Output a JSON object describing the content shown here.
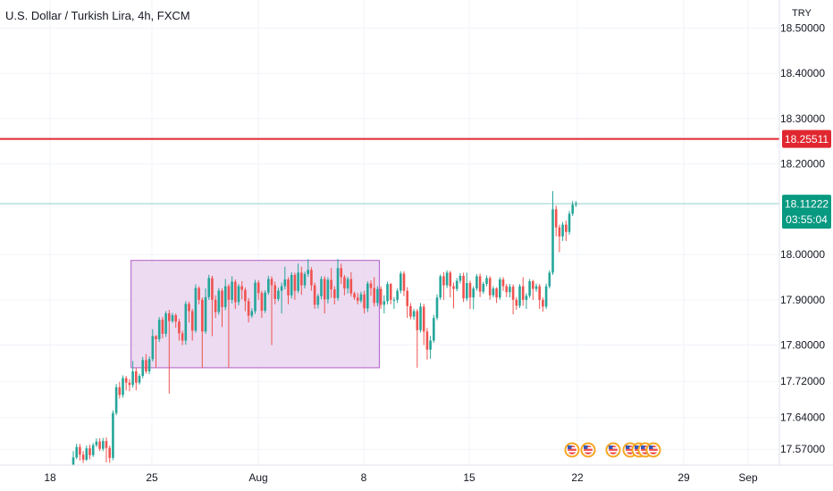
{
  "header": {
    "title": "U.S. Dollar / Turkish Lira, 4h, FXCM",
    "currency": "TRY"
  },
  "chart_data": {
    "type": "candlestick",
    "symbol": "USDTRY",
    "interval": "4h",
    "y_range": [
      17.535,
      18.562
    ],
    "y_ticks": [
      "17.57000",
      "17.64000",
      "17.72000",
      "17.80000",
      "17.90000",
      "18.00000",
      "18.20000",
      "18.30000",
      "18.40000",
      "18.50000"
    ],
    "x_ticks": [
      "18",
      "25",
      "Aug",
      "8",
      "15",
      "22",
      "29",
      "Sep"
    ],
    "resistance_line": {
      "value": 18.25511,
      "label": "18.25511",
      "color": "#e0272f"
    },
    "last_price": {
      "value": 18.11222,
      "label": "18.11222",
      "countdown": "03:55:04",
      "color": "#089981"
    },
    "range_box": {
      "from_index": 18,
      "to_index": 92,
      "high": 17.987,
      "low": 17.75,
      "fill": "#e9d5ee",
      "stroke": "#b05cc8"
    },
    "candle_colors": {
      "up": "#26a69a",
      "down": "#ef5350"
    },
    "event_markers_count": 7,
    "candles": [
      [
        17.536,
        17.552,
        17.536,
        17.566
      ],
      [
        17.552,
        17.575,
        17.548,
        17.582
      ],
      [
        17.575,
        17.558,
        17.545,
        17.582
      ],
      [
        17.558,
        17.547,
        17.54,
        17.566
      ],
      [
        17.547,
        17.572,
        17.544,
        17.578
      ],
      [
        17.572,
        17.557,
        17.548,
        17.58
      ],
      [
        17.557,
        17.579,
        17.553,
        17.584
      ],
      [
        17.579,
        17.587,
        17.575,
        17.594
      ],
      [
        17.587,
        17.571,
        17.566,
        17.594
      ],
      [
        17.571,
        17.588,
        17.566,
        17.595
      ],
      [
        17.588,
        17.573,
        17.541,
        17.596
      ],
      [
        17.573,
        17.551,
        17.54,
        17.578
      ],
      [
        17.551,
        17.65,
        17.546,
        17.656
      ],
      [
        17.65,
        17.707,
        17.645,
        17.714
      ],
      [
        17.707,
        17.69,
        17.682,
        17.719
      ],
      [
        17.69,
        17.727,
        17.684,
        17.733
      ],
      [
        17.727,
        17.717,
        17.7,
        17.732
      ],
      [
        17.717,
        17.712,
        17.698,
        17.725
      ],
      [
        17.712,
        17.742,
        17.706,
        17.765
      ],
      [
        17.742,
        17.717,
        17.7,
        17.75
      ],
      [
        17.717,
        17.732,
        17.713,
        17.737
      ],
      [
        17.732,
        17.767,
        17.727,
        17.774
      ],
      [
        17.767,
        17.742,
        17.737,
        17.78
      ],
      [
        17.742,
        17.769,
        17.736,
        17.775
      ],
      [
        17.769,
        17.82,
        17.764,
        17.835
      ],
      [
        17.82,
        17.813,
        17.75,
        17.822
      ],
      [
        17.813,
        17.856,
        17.807,
        17.862
      ],
      [
        17.856,
        17.825,
        17.815,
        17.862
      ],
      [
        17.825,
        17.87,
        17.818,
        17.875
      ],
      [
        17.87,
        17.853,
        17.693,
        17.878
      ],
      [
        17.853,
        17.866,
        17.849,
        17.871
      ],
      [
        17.866,
        17.852,
        17.838,
        17.87
      ],
      [
        17.852,
        17.826,
        17.81,
        17.858
      ],
      [
        17.826,
        17.81,
        17.8,
        17.832
      ],
      [
        17.81,
        17.891,
        17.801,
        17.897
      ],
      [
        17.891,
        17.875,
        17.85,
        17.896
      ],
      [
        17.875,
        17.832,
        17.81,
        17.88
      ],
      [
        17.832,
        17.926,
        17.827,
        17.934
      ],
      [
        17.926,
        17.9,
        17.89,
        17.93
      ],
      [
        17.9,
        17.83,
        17.75,
        17.905
      ],
      [
        17.83,
        17.906,
        17.825,
        17.925
      ],
      [
        17.906,
        17.948,
        17.9,
        17.955
      ],
      [
        17.948,
        17.9,
        17.82,
        17.953
      ],
      [
        17.9,
        17.873,
        17.86,
        17.91
      ],
      [
        17.873,
        17.92,
        17.867,
        17.926
      ],
      [
        17.92,
        17.884,
        17.84,
        17.925
      ],
      [
        17.884,
        17.93,
        17.877,
        17.946
      ],
      [
        17.93,
        17.9,
        17.75,
        17.935
      ],
      [
        17.9,
        17.94,
        17.892,
        17.952
      ],
      [
        17.94,
        17.895,
        17.88,
        17.945
      ],
      [
        17.895,
        17.93,
        17.888,
        17.935
      ],
      [
        17.93,
        17.922,
        17.901,
        17.941
      ],
      [
        17.922,
        17.897,
        17.875,
        17.927
      ],
      [
        17.897,
        17.865,
        17.85,
        17.904
      ],
      [
        17.865,
        17.875,
        17.86,
        17.881
      ],
      [
        17.875,
        17.938,
        17.869,
        17.944
      ],
      [
        17.938,
        17.915,
        17.9,
        17.943
      ],
      [
        17.915,
        17.876,
        17.86,
        17.92
      ],
      [
        17.876,
        17.916,
        17.871,
        17.921
      ],
      [
        17.916,
        17.946,
        17.911,
        17.953
      ],
      [
        17.946,
        17.932,
        17.8,
        17.952
      ],
      [
        17.932,
        17.902,
        17.89,
        17.94
      ],
      [
        17.902,
        17.92,
        17.897,
        17.927
      ],
      [
        17.92,
        17.93,
        17.87,
        17.938
      ],
      [
        17.93,
        17.945,
        17.923,
        17.973
      ],
      [
        17.945,
        17.91,
        17.89,
        17.95
      ],
      [
        17.91,
        17.955,
        17.903,
        17.961
      ],
      [
        17.955,
        17.92,
        17.9,
        17.96
      ],
      [
        17.92,
        17.96,
        17.915,
        17.98
      ],
      [
        17.96,
        17.932,
        17.911,
        17.973
      ],
      [
        17.932,
        17.957,
        17.925,
        17.962
      ],
      [
        17.957,
        17.966,
        17.951,
        17.99
      ],
      [
        17.966,
        17.932,
        17.92,
        17.972
      ],
      [
        17.932,
        17.889,
        17.88,
        17.938
      ],
      [
        17.889,
        17.908,
        17.881,
        17.913
      ],
      [
        17.908,
        17.946,
        17.901,
        17.952
      ],
      [
        17.946,
        17.901,
        17.87,
        17.952
      ],
      [
        17.901,
        17.944,
        17.892,
        17.95
      ],
      [
        17.944,
        17.923,
        17.904,
        17.97
      ],
      [
        17.923,
        17.904,
        17.89,
        17.93
      ],
      [
        17.904,
        17.97,
        17.898,
        17.99
      ],
      [
        17.97,
        17.95,
        17.935,
        17.98
      ],
      [
        17.95,
        17.925,
        17.91,
        17.955
      ],
      [
        17.925,
        17.946,
        17.914,
        17.951
      ],
      [
        17.946,
        17.914,
        17.907,
        17.961
      ],
      [
        17.914,
        17.905,
        17.9,
        17.918
      ],
      [
        17.905,
        17.898,
        17.89,
        17.915
      ],
      [
        17.898,
        17.912,
        17.893,
        17.918
      ],
      [
        17.912,
        17.881,
        17.87,
        17.92
      ],
      [
        17.881,
        17.936,
        17.873,
        17.941
      ],
      [
        17.936,
        17.926,
        17.909,
        17.943
      ],
      [
        17.926,
        17.893,
        17.885,
        17.95
      ],
      [
        17.893,
        17.924,
        17.886,
        17.93
      ],
      [
        17.924,
        17.889,
        17.88,
        17.93
      ],
      [
        17.889,
        17.897,
        17.87,
        17.91
      ],
      [
        17.897,
        17.935,
        17.89,
        17.94
      ],
      [
        17.935,
        17.9,
        17.89,
        17.937
      ],
      [
        17.9,
        17.9,
        17.88,
        17.906
      ],
      [
        17.9,
        17.92,
        17.893,
        17.925
      ],
      [
        17.92,
        17.958,
        17.914,
        17.963
      ],
      [
        17.958,
        17.92,
        17.908,
        17.963
      ],
      [
        17.92,
        17.886,
        17.86,
        17.928
      ],
      [
        17.886,
        17.863,
        17.857,
        17.893
      ],
      [
        17.863,
        17.875,
        17.856,
        17.88
      ],
      [
        17.875,
        17.833,
        17.75,
        17.88
      ],
      [
        17.833,
        17.885,
        17.828,
        17.893
      ],
      [
        17.885,
        17.83,
        17.8,
        17.891
      ],
      [
        17.83,
        17.79,
        17.768,
        17.838
      ],
      [
        17.79,
        17.81,
        17.77,
        17.82
      ],
      [
        17.81,
        17.86,
        17.805,
        17.867
      ],
      [
        17.86,
        17.905,
        17.855,
        17.912
      ],
      [
        17.905,
        17.952,
        17.9,
        17.956
      ],
      [
        17.952,
        17.932,
        17.9,
        17.961
      ],
      [
        17.932,
        17.96,
        17.926,
        17.965
      ],
      [
        17.96,
        17.93,
        17.905,
        17.964
      ],
      [
        17.93,
        17.924,
        17.881,
        17.938
      ],
      [
        17.924,
        17.942,
        17.919,
        17.948
      ],
      [
        17.942,
        17.953,
        17.936,
        17.959
      ],
      [
        17.953,
        17.903,
        17.895,
        17.96
      ],
      [
        17.903,
        17.937,
        17.897,
        17.96
      ],
      [
        17.937,
        17.905,
        17.88,
        17.942
      ],
      [
        17.905,
        17.925,
        17.879,
        17.93
      ],
      [
        17.925,
        17.952,
        17.92,
        17.957
      ],
      [
        17.952,
        17.918,
        17.906,
        17.958
      ],
      [
        17.918,
        17.935,
        17.913,
        17.94
      ],
      [
        17.935,
        17.948,
        17.93,
        17.954
      ],
      [
        17.948,
        17.91,
        17.9,
        17.952
      ],
      [
        17.91,
        17.925,
        17.905,
        17.93
      ],
      [
        17.925,
        17.905,
        17.893,
        17.928
      ],
      [
        17.905,
        17.945,
        17.9,
        17.95
      ],
      [
        17.945,
        17.93,
        17.92,
        17.95
      ],
      [
        17.93,
        17.917,
        17.906,
        17.935
      ],
      [
        17.917,
        17.929,
        17.905,
        17.935
      ],
      [
        17.929,
        17.9,
        17.868,
        17.934
      ],
      [
        17.9,
        17.887,
        17.878,
        17.906
      ],
      [
        17.887,
        17.93,
        17.882,
        17.935
      ],
      [
        17.93,
        17.9,
        17.887,
        17.95
      ],
      [
        17.9,
        17.909,
        17.88,
        17.915
      ],
      [
        17.909,
        17.941,
        17.904,
        17.946
      ],
      [
        17.941,
        17.924,
        17.9,
        17.944
      ],
      [
        17.924,
        17.93,
        17.918,
        17.936
      ],
      [
        17.93,
        17.9,
        17.88,
        17.935
      ],
      [
        17.9,
        17.885,
        17.874,
        17.905
      ],
      [
        17.885,
        17.93,
        17.88,
        17.936
      ],
      [
        17.93,
        17.96,
        17.925,
        17.965
      ],
      [
        17.96,
        18.1,
        17.955,
        18.14
      ],
      [
        18.1,
        18.06,
        18.04,
        18.108
      ],
      [
        18.06,
        18.04,
        18.005,
        18.066
      ],
      [
        18.04,
        18.066,
        18.03,
        18.072
      ],
      [
        18.066,
        18.05,
        18.03,
        18.075
      ],
      [
        18.05,
        18.09,
        18.044,
        18.096
      ],
      [
        18.09,
        18.11,
        18.085,
        18.118
      ],
      [
        18.11,
        18.112,
        18.105,
        18.118
      ]
    ]
  }
}
